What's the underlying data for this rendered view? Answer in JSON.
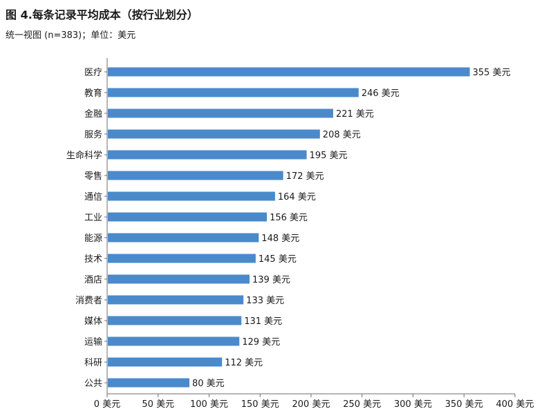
{
  "header": {
    "title": "图 4.每条记录平均成本（按行业划分）",
    "subtitle": "统一视图 (n=383)；单位：美元"
  },
  "colors": {
    "bar": "#4a8acb",
    "axis": "#6e6e6e"
  },
  "chart_data": {
    "type": "bar",
    "orientation": "horizontal",
    "title": "图 4.每条记录平均成本（按行业划分）",
    "subtitle": "统一视图 (n=383)；单位：美元",
    "categories": [
      "医疗",
      "教育",
      "金融",
      "服务",
      "生命科学",
      "零售",
      "通信",
      "工业",
      "能源",
      "技术",
      "酒店",
      "消费者",
      "媒体",
      "运输",
      "科研",
      "公共"
    ],
    "values": [
      355,
      246,
      221,
      208,
      195,
      172,
      164,
      156,
      148,
      145,
      139,
      133,
      131,
      129,
      112,
      80
    ],
    "value_labels": [
      "355 美元",
      "246 美元",
      "221 美元",
      "208 美元",
      "195 美元",
      "172 美元",
      "164 美元",
      "156 美元",
      "148 美元",
      "145 美元",
      "139 美元",
      "133 美元",
      "131 美元",
      "129 美元",
      "112 美元",
      "80 美元"
    ],
    "xlim": [
      0,
      400
    ],
    "xticks": [
      0,
      50,
      100,
      150,
      200,
      250,
      300,
      350,
      400
    ],
    "xtick_labels": [
      "0 美元",
      "50 美元",
      "100 美元",
      "150 美元",
      "200 美元",
      "250 美元",
      "300 美元",
      "350 美元",
      "400 美元"
    ],
    "xlabel": "",
    "ylabel": "",
    "grid": false,
    "legend": "none"
  }
}
